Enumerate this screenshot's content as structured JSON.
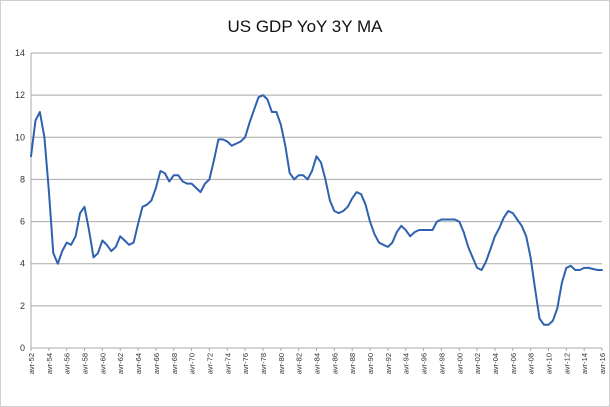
{
  "chart_data": {
    "type": "line",
    "title": "US GDP YoY 3Y MA",
    "xlabel": "",
    "ylabel": "",
    "ylim": [
      0,
      14
    ],
    "yticks": [
      0,
      2,
      4,
      6,
      8,
      10,
      12,
      14
    ],
    "grid": true,
    "legend": "none",
    "line_color": "#2e62b0",
    "grid_color": "#a8a8a8",
    "xlim": [
      1952,
      2016
    ],
    "xtick_labels": [
      "avr-52",
      "avr-54",
      "avr-56",
      "avr-58",
      "avr-60",
      "avr-62",
      "avr-64",
      "avr-66",
      "avr-68",
      "avr-70",
      "avr-72",
      "avr-74",
      "avr-76",
      "avr-78",
      "avr-80",
      "avr-82",
      "avr-84",
      "avr-86",
      "avr-88",
      "avr-90",
      "avr-92",
      "avr-94",
      "avr-96",
      "avr-98",
      "avr-00",
      "avr-02",
      "avr-04",
      "avr-06",
      "avr-08",
      "avr-10",
      "avr-12",
      "avr-14",
      "avr-16"
    ],
    "series": [
      {
        "x": [
          1952,
          1952.5,
          1953,
          1953.5,
          1954,
          1954.5,
          1955,
          1955.5,
          1956,
          1956.5,
          1957,
          1957.5,
          1958,
          1958.5,
          1959,
          1959.5,
          1960,
          1960.5,
          1961,
          1961.5,
          1962,
          1962.5,
          1963,
          1963.5,
          1964,
          1964.5,
          1965,
          1965.5,
          1966,
          1966.5,
          1967,
          1967.5,
          1968,
          1968.5,
          1969,
          1969.5,
          1970,
          1970.5,
          1971,
          1971.5,
          1972,
          1972.5,
          1973,
          1973.5,
          1974,
          1974.5,
          1975,
          1975.5,
          1976,
          1976.5,
          1977,
          1977.5,
          1978,
          1978.5,
          1979,
          1979.5,
          1980,
          1980.5,
          1981,
          1981.5,
          1982,
          1982.5,
          1983,
          1983.5,
          1984,
          1984.5,
          1985,
          1985.5,
          1986,
          1986.5,
          1987,
          1987.5,
          1988,
          1988.5,
          1989,
          1989.5,
          1990,
          1990.5,
          1991,
          1991.5,
          1992,
          1992.5,
          1993,
          1993.5,
          1994,
          1994.5,
          1995,
          1995.5,
          1996,
          1996.5,
          1997,
          1997.5,
          1998,
          1998.5,
          1999,
          1999.5,
          2000,
          2000.5,
          2001,
          2001.5,
          2002,
          2002.5,
          2003,
          2003.5,
          2004,
          2004.5,
          2005,
          2005.5,
          2006,
          2006.5,
          2007,
          2007.5,
          2008,
          2008.5,
          2009,
          2009.5,
          2010,
          2010.5,
          2011,
          2011.5,
          2012,
          2012.5,
          2013,
          2013.5,
          2014,
          2014.5,
          2015,
          2015.5,
          2016
        ],
        "y": [
          9.1,
          10.8,
          11.2,
          10.0,
          7.5,
          4.5,
          4.0,
          4.6,
          5.0,
          4.9,
          5.3,
          6.4,
          6.7,
          5.6,
          4.3,
          4.5,
          5.1,
          4.9,
          4.6,
          4.8,
          5.3,
          5.1,
          4.9,
          5.0,
          5.9,
          6.7,
          6.8,
          7.0,
          7.6,
          8.4,
          8.3,
          7.9,
          8.2,
          8.2,
          7.9,
          7.8,
          7.8,
          7.6,
          7.4,
          7.8,
          8.0,
          8.9,
          9.9,
          9.9,
          9.8,
          9.6,
          9.7,
          9.8,
          10.0,
          10.7,
          11.3,
          11.9,
          12.0,
          11.8,
          11.2,
          11.2,
          10.6,
          9.6,
          8.3,
          8.0,
          8.2,
          8.2,
          8.0,
          8.4,
          9.1,
          8.8,
          8.0,
          7.0,
          6.5,
          6.4,
          6.5,
          6.7,
          7.1,
          7.4,
          7.3,
          6.8,
          6.0,
          5.4,
          5.0,
          4.9,
          4.8,
          5.0,
          5.5,
          5.8,
          5.6,
          5.3,
          5.5,
          5.6,
          5.6,
          5.6,
          5.6,
          6.0,
          6.1,
          6.1,
          6.1,
          6.1,
          6.0,
          5.5,
          4.8,
          4.3,
          3.8,
          3.7,
          4.1,
          4.7,
          5.3,
          5.7,
          6.2,
          6.5,
          6.4,
          6.1,
          5.8,
          5.3,
          4.3,
          2.8,
          1.4,
          1.1,
          1.1,
          1.3,
          1.9,
          3.1,
          3.8,
          3.9,
          3.7,
          3.7,
          3.8,
          3.8,
          3.75,
          3.7,
          3.7
        ]
      }
    ]
  }
}
